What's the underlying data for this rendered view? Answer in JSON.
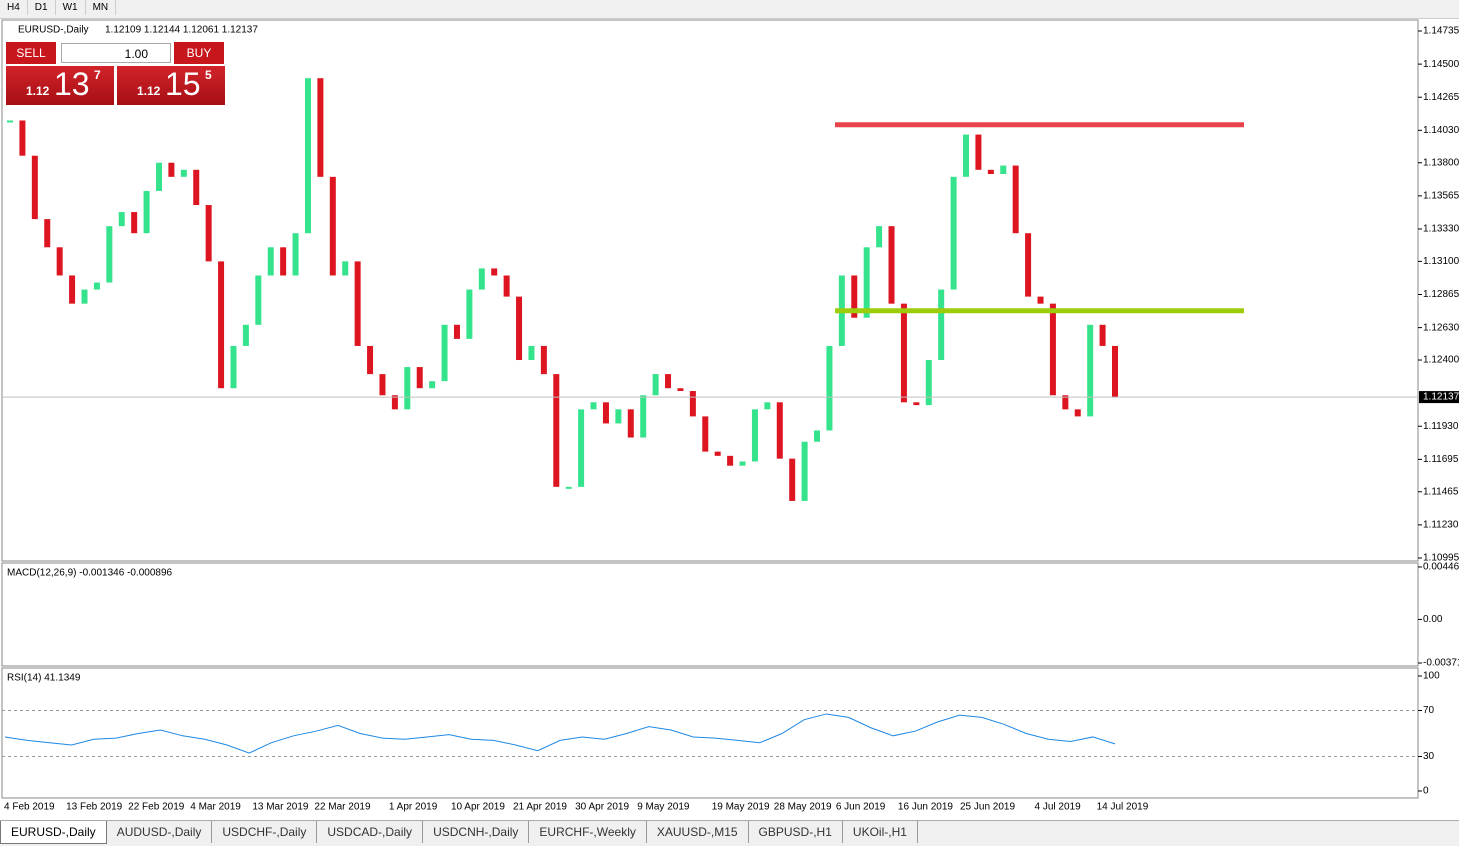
{
  "toolbar": {
    "timeframes": [
      "H4",
      "D1",
      "W1",
      "MN"
    ]
  },
  "trade_panel": {
    "sell": "SELL",
    "lots": "1.00",
    "buy": "BUY",
    "bid": {
      "prefix": "1.12",
      "big": "13",
      "small": "7"
    },
    "ask": {
      "prefix": "1.12",
      "big": "15",
      "small": "5"
    }
  },
  "chart_data": [
    {
      "type": "candlestick",
      "title": "EURUSD-,Daily",
      "subtitle": "1.12109 1.12144 1.12061 1.12137",
      "categories": [
        "4 Feb 2019",
        null,
        null,
        null,
        null,
        "13 Feb 2019",
        null,
        null,
        null,
        null,
        "22 Feb 2019",
        null,
        null,
        null,
        null,
        "4 Mar 2019",
        null,
        null,
        null,
        null,
        "13 Mar 2019",
        null,
        null,
        null,
        null,
        "22 Mar 2019",
        null,
        null,
        null,
        null,
        null,
        "1 Apr 2019",
        null,
        null,
        null,
        null,
        "10 Apr 2019",
        null,
        null,
        null,
        null,
        "21 Apr 2019",
        null,
        null,
        null,
        null,
        "30 Apr 2019",
        null,
        null,
        null,
        null,
        "9 May 2019",
        null,
        null,
        null,
        null,
        null,
        "19 May 2019",
        null,
        null,
        null,
        null,
        "28 May 2019",
        null,
        null,
        null,
        null,
        "6 Jun 2019",
        null,
        null,
        null,
        null,
        "16 Jun 2019",
        null,
        null,
        null,
        null,
        "25 Jun 2019",
        null,
        null,
        null,
        null,
        null,
        "4 Jul 2019",
        null,
        null,
        null,
        null,
        "14 Jul 2019",
        null
      ],
      "values": [
        1.141,
        1.1385,
        1.134,
        1.132,
        1.13,
        1.128,
        1.129,
        1.1295,
        1.1335,
        1.1345,
        1.133,
        1.136,
        1.138,
        1.137,
        1.1375,
        1.135,
        1.131,
        1.122,
        1.125,
        1.1265,
        1.13,
        1.132,
        1.13,
        1.133,
        1.144,
        1.137,
        1.13,
        1.131,
        1.125,
        1.123,
        1.1215,
        1.1205,
        1.1235,
        1.122,
        1.1225,
        1.1265,
        1.1255,
        1.129,
        1.1305,
        1.13,
        1.1285,
        1.124,
        1.125,
        1.123,
        1.115,
        1.115,
        1.1205,
        1.121,
        1.1195,
        1.1205,
        1.1185,
        1.1215,
        1.123,
        1.122,
        1.1218,
        1.12,
        1.1175,
        1.1172,
        1.1165,
        1.1168,
        1.1205,
        1.121,
        1.117,
        1.114,
        1.1182,
        1.119,
        1.125,
        1.13,
        1.127,
        1.132,
        1.1335,
        1.128,
        1.121,
        1.1208,
        1.124,
        1.129,
        1.137,
        1.14,
        1.1375,
        1.1372,
        1.1378,
        1.133,
        1.1285,
        1.128,
        1.1215,
        1.1205,
        1.12,
        1.1265,
        1.125,
        1.12137
      ],
      "up_color": "#34e38c",
      "down_color": "#dd1520",
      "ylim": [
        1.10995,
        1.14735
      ],
      "yticks": [
        {
          "value": 1.14735,
          "label": "1.14735"
        },
        {
          "value": 1.145,
          "label": "1.14500"
        },
        {
          "value": 1.14265,
          "label": "1.14265"
        },
        {
          "value": 1.1403,
          "label": "1.14030"
        },
        {
          "value": 1.138,
          "label": "1.13800"
        },
        {
          "value": 1.13565,
          "label": "1.13565"
        },
        {
          "value": 1.1333,
          "label": "1.13330"
        },
        {
          "value": 1.131,
          "label": "1.13100"
        },
        {
          "value": 1.12865,
          "label": "1.12865"
        },
        {
          "value": 1.1263,
          "label": "1.12630"
        },
        {
          "value": 1.124,
          "label": "1.12400"
        },
        {
          "value": 1.1193,
          "label": "1.11930"
        },
        {
          "value": 1.11695,
          "label": "1.11695"
        },
        {
          "value": 1.11465,
          "label": "1.11465"
        },
        {
          "value": 1.1123,
          "label": "1.11230"
        },
        {
          "value": 1.10995,
          "label": "1.10995"
        }
      ],
      "current_price": 1.12137,
      "levels": [
        {
          "value": 1.1407,
          "color": "#e8434b"
        },
        {
          "value": 1.1275,
          "color": "#9ccc0a"
        }
      ]
    },
    {
      "type": "macd",
      "title": "MACD(12,26,9) -0.001346 -0.000896",
      "ylim": [
        -0.003715,
        0.004465
      ],
      "yticks": [
        0.004465,
        {
          "value": 0,
          "label": "0.00"
        },
        -0.003715
      ]
    },
    {
      "type": "line",
      "title": "RSI(14) 41.1349",
      "color": "#1e88e5",
      "ylim": [
        0,
        100
      ],
      "yticks": [
        100,
        70,
        30,
        0
      ],
      "levels": [
        70,
        30
      ],
      "values": [
        47,
        44,
        42,
        40,
        45,
        46,
        50,
        53,
        48,
        45,
        40,
        33,
        42,
        48,
        52,
        57,
        50,
        46,
        45,
        47,
        49,
        45,
        44,
        40,
        35,
        44,
        47,
        45,
        50,
        56,
        53,
        47,
        46,
        44,
        42,
        50,
        62,
        67,
        64,
        55,
        48,
        52,
        60,
        66,
        64,
        58,
        50,
        45,
        43,
        47,
        41
      ]
    }
  ],
  "tabs": [
    "EURUSD-,Daily",
    "AUDUSD-,Daily",
    "USDCHF-,Daily",
    "USDCAD-,Daily",
    "USDCNH-,Daily",
    "EURCHF-,Weekly",
    "XAUUSD-,M15",
    "GBPUSD-,H1",
    "UKOil-,H1"
  ]
}
